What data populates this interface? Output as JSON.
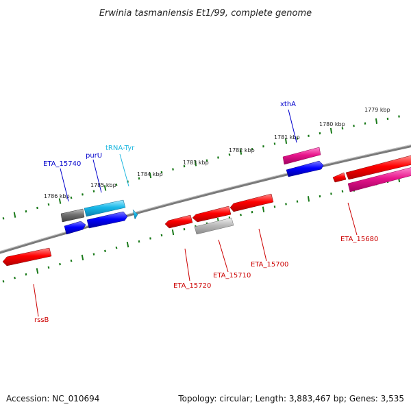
{
  "title": "Erwinia tasmaniensis Et1/99, complete genome",
  "footer": {
    "accession_label": "Accession:",
    "accession": "NC_010694",
    "topology_label": "Topology:",
    "topology": "circular",
    "length_label": "Length:",
    "length": "3,883,467 bp",
    "genes_label": "Genes:",
    "genes": "3,535"
  },
  "scale_labels": [
    "1779 kbp",
    "1780 kbp",
    "1781 kbp",
    "1782 kbp",
    "1783 kbp",
    "1784 kbp",
    "1785 kbp",
    "1786 kbp"
  ],
  "gene_labels": {
    "xthA": "xthA",
    "ETA_15740": "ETA_15740",
    "purU": "purU",
    "tRNA_Tyr": "tRNA-Tyr",
    "ETA_15680": "ETA_15680",
    "ETA_15700": "ETA_15700",
    "ETA_15710": "ETA_15710",
    "ETA_15720": "ETA_15720",
    "rssB": "rssB"
  },
  "colors": {
    "blue_label": "#0000cc",
    "cyan_label": "#20b8e0",
    "red_label": "#cc0000",
    "backbone": "#7a7a7a",
    "tick": "#1a7a1a",
    "red_gene": "#ff0000",
    "magenta_gene": "#e8158c",
    "blue_gene": "#0000ff",
    "cyan_gene": "#18b8e8",
    "gray_gene": "#707070",
    "light_gray_gene": "#bbbbbb"
  }
}
